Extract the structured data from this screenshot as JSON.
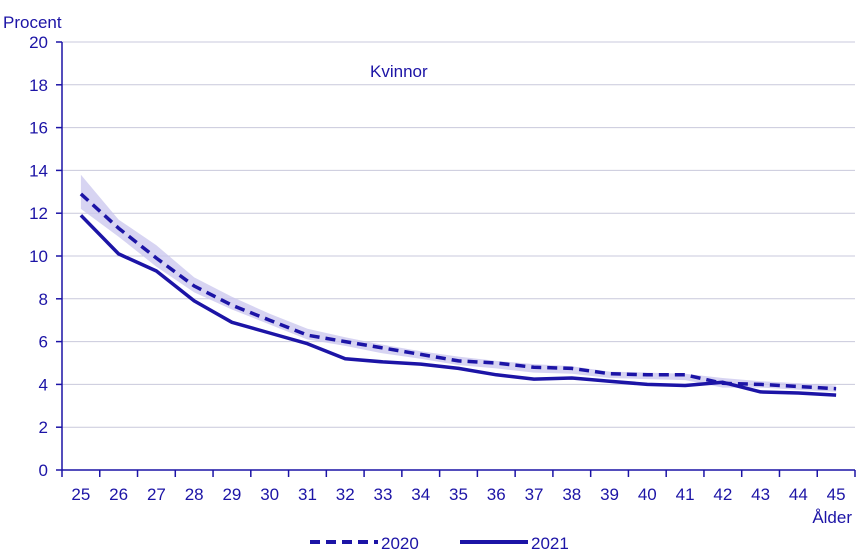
{
  "chart_data": {
    "type": "line",
    "title": "",
    "ylabel": "Procent",
    "xlabel": "Ålder",
    "annotation": "Kvinnor",
    "ylim": [
      0,
      20
    ],
    "yticks": [
      0,
      2,
      4,
      6,
      8,
      10,
      12,
      14,
      16,
      18,
      20
    ],
    "x": [
      25,
      26,
      27,
      28,
      29,
      30,
      31,
      32,
      33,
      34,
      35,
      36,
      37,
      38,
      39,
      40,
      41,
      42,
      43,
      44,
      45
    ],
    "grid": true,
    "legend_position": "bottom",
    "series": [
      {
        "name": "2020",
        "style": "dashed",
        "color": "#1c14a6",
        "values": [
          12.9,
          11.3,
          9.9,
          8.6,
          7.7,
          7.0,
          6.3,
          6.0,
          5.7,
          5.4,
          5.1,
          5.0,
          4.8,
          4.75,
          4.5,
          4.45,
          4.45,
          4.05,
          4.0,
          3.9,
          3.8
        ]
      },
      {
        "name": "2021",
        "style": "solid",
        "color": "#1c14a6",
        "values": [
          11.9,
          10.1,
          9.3,
          7.9,
          6.9,
          6.4,
          5.9,
          5.2,
          5.05,
          4.95,
          4.75,
          4.45,
          4.25,
          4.3,
          4.15,
          4.0,
          3.95,
          4.1,
          3.65,
          3.6,
          3.5
        ]
      }
    ],
    "band": {
      "color": "#c9c6ee",
      "lower": [
        12.2,
        10.9,
        9.5,
        8.3,
        7.5,
        6.8,
        6.1,
        5.8,
        5.45,
        5.2,
        4.9,
        4.75,
        4.55,
        4.5,
        4.3,
        4.25,
        4.2,
        3.85,
        3.85,
        3.75,
        3.65
      ],
      "upper": [
        13.8,
        11.7,
        10.5,
        9.0,
        8.1,
        7.3,
        6.6,
        6.2,
        5.85,
        5.55,
        5.3,
        5.1,
        4.95,
        4.85,
        4.6,
        4.55,
        4.5,
        4.3,
        4.15,
        4.05,
        3.95
      ]
    }
  }
}
